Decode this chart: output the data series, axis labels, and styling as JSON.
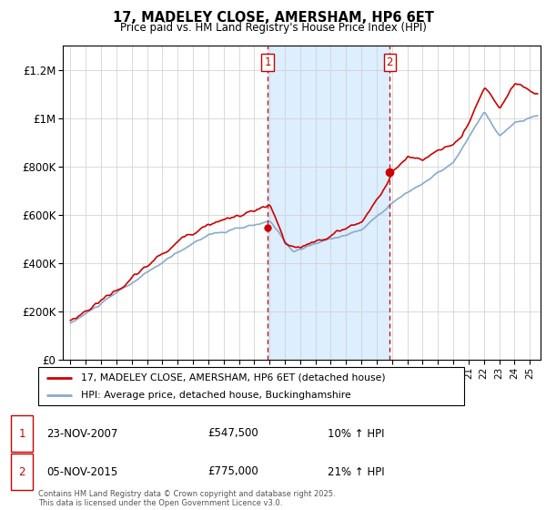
{
  "title": "17, MADELEY CLOSE, AMERSHAM, HP6 6ET",
  "subtitle": "Price paid vs. HM Land Registry's House Price Index (HPI)",
  "legend_line1": "17, MADELEY CLOSE, AMERSHAM, HP6 6ET (detached house)",
  "legend_line2": "HPI: Average price, detached house, Buckinghamshire",
  "sale1_date": "23-NOV-2007",
  "sale1_price": "£547,500",
  "sale1_hpi": "10% ↑ HPI",
  "sale2_date": "05-NOV-2015",
  "sale2_price": "£775,000",
  "sale2_hpi": "21% ↑ HPI",
  "footer": "Contains HM Land Registry data © Crown copyright and database right 2025.\nThis data is licensed under the Open Government Licence v3.0.",
  "sale1_year": 2007.88,
  "sale2_year": 2015.85,
  "price_color": "#cc0000",
  "hpi_color": "#88aacc",
  "shade_color": "#ddeeff",
  "vline_color": "#cc0000",
  "ylim": [
    0,
    1300000
  ],
  "yticks": [
    0,
    200000,
    400000,
    600000,
    800000,
    1000000,
    1200000
  ],
  "ytick_labels": [
    "£0",
    "£200K",
    "£400K",
    "£600K",
    "£800K",
    "£1M",
    "£1.2M"
  ],
  "xmin": 1994.5,
  "xmax": 2025.7,
  "marker1_price": 547500,
  "marker2_price": 775000
}
